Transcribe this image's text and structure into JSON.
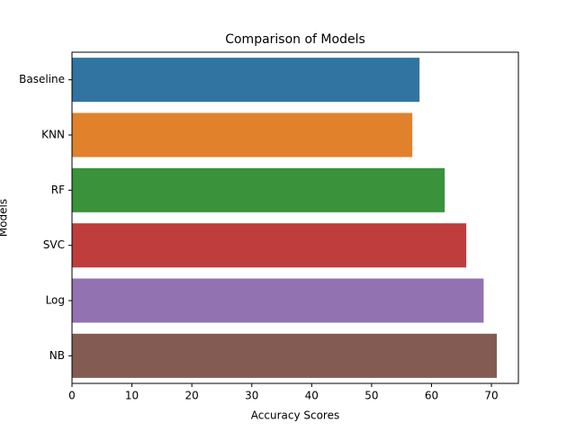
{
  "chart_data": {
    "type": "barh",
    "title": "Comparison of Models",
    "xlabel": "Accuracy Scores",
    "ylabel": "Models",
    "categories": [
      "Baseline",
      "KNN",
      "RF",
      "SVC",
      "Log",
      "NB"
    ],
    "values": [
      58.0,
      56.8,
      62.2,
      65.8,
      68.7,
      70.9
    ],
    "colors": [
      "#3274a1",
      "#e1812c",
      "#3a923a",
      "#c03d3e",
      "#9372b2",
      "#845b53"
    ],
    "xlim": [
      0,
      74.5
    ],
    "xticks": [
      0,
      10,
      20,
      30,
      40,
      50,
      60,
      70
    ],
    "grid": false
  }
}
